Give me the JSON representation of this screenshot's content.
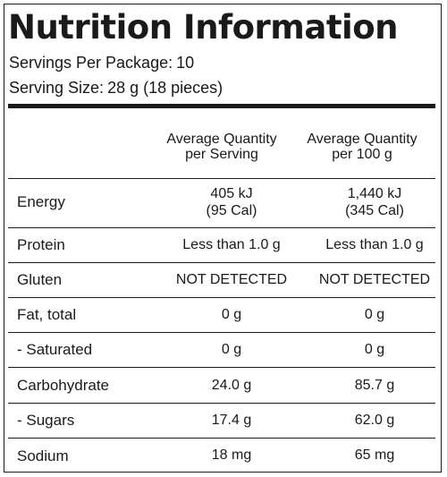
{
  "title": "Nutrition Information",
  "servings_per_package": {
    "label": "Servings Per Package:",
    "value": "10"
  },
  "serving_size": {
    "label": "Serving Size:",
    "value": "28 g (18 pieces)"
  },
  "columns": {
    "per_serving": [
      "Average Quantity",
      "per Serving"
    ],
    "per_100g": [
      "Average Quantity",
      "per 100 g"
    ]
  },
  "rows": [
    {
      "label": "Energy",
      "per_serving": [
        "405 kJ",
        "(95 Cal)"
      ],
      "per_100g": [
        "1,440 kJ",
        "(345 Cal)"
      ]
    },
    {
      "label": "Protein",
      "per_serving": "Less than 1.0 g",
      "per_100g": "Less than 1.0 g"
    },
    {
      "label": "Gluten",
      "per_serving": "NOT DETECTED",
      "per_100g": "NOT DETECTED"
    },
    {
      "label": "Fat, total",
      "per_serving": "0 g",
      "per_100g": "0 g"
    },
    {
      "label": "- Saturated",
      "per_serving": "0 g",
      "per_100g": "0 g"
    },
    {
      "label": "Carbohydrate",
      "per_serving": "24.0 g",
      "per_100g": "85.7 g"
    },
    {
      "label": "- Sugars",
      "per_serving": "17.4 g",
      "per_100g": "62.0 g"
    },
    {
      "label": "Sodium",
      "per_serving": "18 mg",
      "per_100g": "65 mg"
    }
  ]
}
